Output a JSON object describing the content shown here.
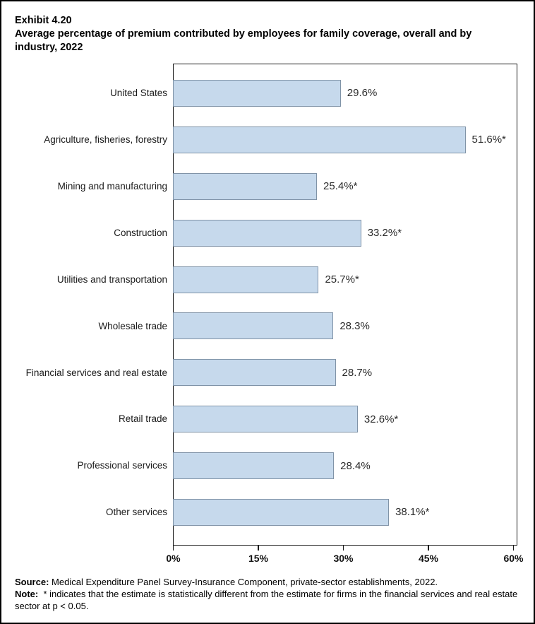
{
  "header": {
    "exhibit": "Exhibit 4.20",
    "title": "Average percentage of premium contributed by employees for family coverage, overall and by industry, 2022"
  },
  "chart_data": {
    "type": "bar",
    "orientation": "horizontal",
    "title": "Exhibit 4.20",
    "subtitle": "Average percentage of premium contributed by employees for family coverage, overall and by industry, 2022",
    "categories": [
      "United States",
      "Agriculture, fisheries, forestry",
      "Mining and manufacturing",
      "Construction",
      "Utilities and transportation",
      "Wholesale trade",
      "Financial services and real estate",
      "Retail trade",
      "Professional services",
      "Other services"
    ],
    "values": [
      29.6,
      51.6,
      25.4,
      33.2,
      25.7,
      28.3,
      28.7,
      32.6,
      28.4,
      38.1
    ],
    "value_labels": [
      "29.6%",
      "51.6%*",
      "25.4%*",
      "33.2%*",
      "25.7%*",
      "28.3%",
      "28.7%",
      "32.6%*",
      "28.4%",
      "38.1%*"
    ],
    "xlim": [
      0,
      60
    ],
    "x_ticks": [
      "0%",
      "15%",
      "30%",
      "45%",
      "60%"
    ],
    "grid": "off",
    "legend": "none",
    "bar_fill": "#c6d9ec",
    "bar_border": "#8093a7"
  },
  "footer": {
    "source_label": "Source:",
    "source_text": "Medical Expenditure Panel Survey-Insurance Component, private-sector establishments, 2022.",
    "note_label": "Note:",
    "note_text": "* indicates that the estimate is statistically different from the estimate for firms in the financial services and real estate sector at p < 0.05."
  }
}
